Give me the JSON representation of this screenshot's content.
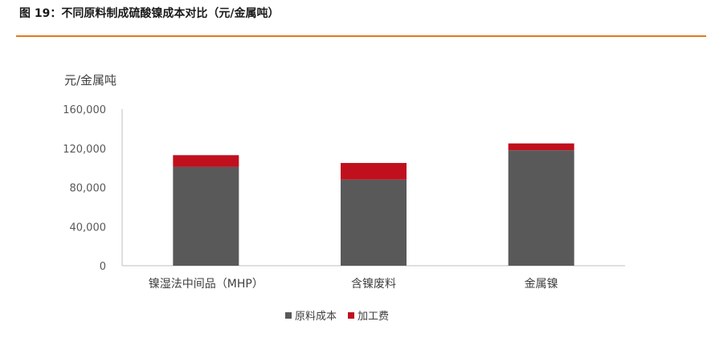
{
  "figure": {
    "title": "图 19：不同原料制成硫酸镍成本对比（元/金属吨）",
    "accent_color": "#e5781e"
  },
  "chart_data": {
    "type": "bar",
    "stacked": true,
    "title": "",
    "ylabel": "元/金属吨",
    "xlabel": "",
    "categories": [
      "镍湿法中间品（MHP）",
      "含镍废料",
      "金属镍"
    ],
    "series": [
      {
        "name": "原料成本",
        "color": "#595959",
        "values": [
          101000,
          88000,
          118000
        ]
      },
      {
        "name": "加工费",
        "color": "#c0101e",
        "values": [
          12000,
          17000,
          7000
        ]
      }
    ],
    "ylim": [
      0,
      160000
    ],
    "yticks": [
      0,
      40000,
      80000,
      120000,
      160000
    ],
    "ytick_labels": [
      "0",
      "40,000",
      "80,000",
      "120,000",
      "160,000"
    ],
    "grid": false,
    "legend_position": "bottom"
  }
}
